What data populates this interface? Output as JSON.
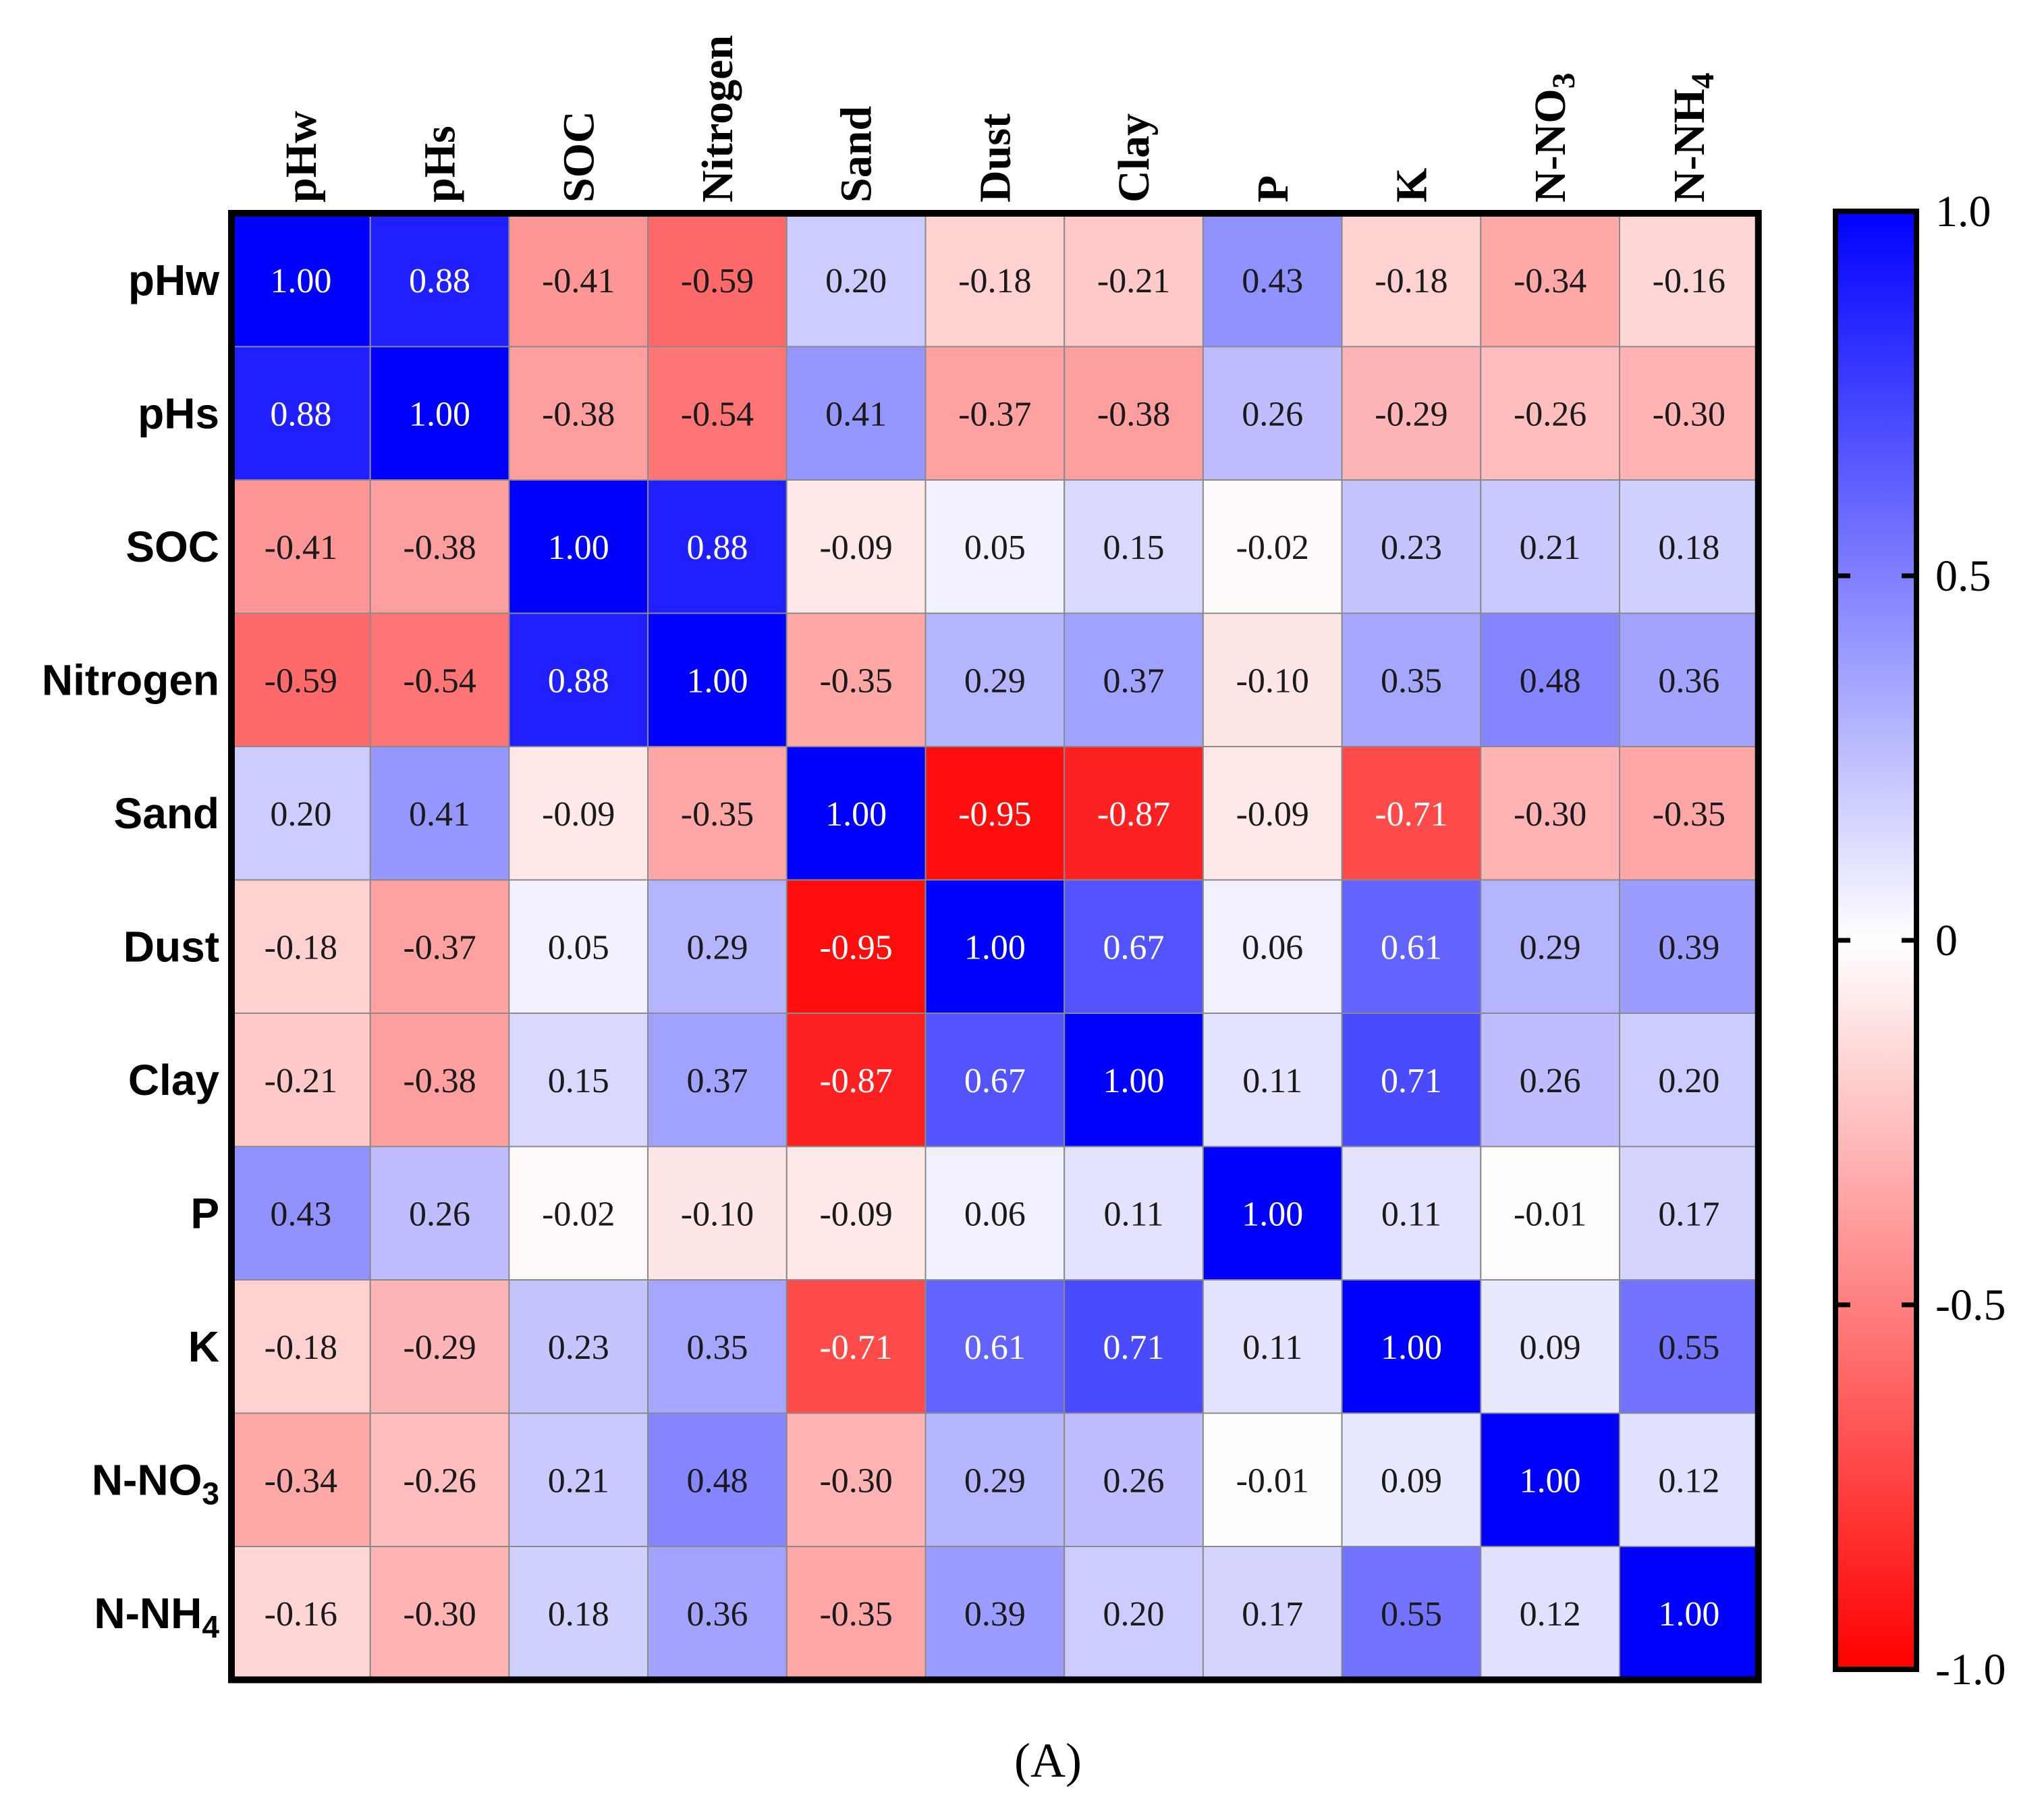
{
  "chart_data": {
    "type": "heatmap",
    "title": "",
    "panel_label": "(A)",
    "labels": [
      {
        "main": "pHw",
        "sub": ""
      },
      {
        "main": "pHs",
        "sub": ""
      },
      {
        "main": "SOC",
        "sub": ""
      },
      {
        "main": "Nitrogen",
        "sub": ""
      },
      {
        "main": "Sand",
        "sub": ""
      },
      {
        "main": "Dust",
        "sub": ""
      },
      {
        "main": "Clay",
        "sub": ""
      },
      {
        "main": "P",
        "sub": ""
      },
      {
        "main": "K",
        "sub": ""
      },
      {
        "main": "N-NO",
        "sub": "3"
      },
      {
        "main": "N-NH",
        "sub": "4"
      }
    ],
    "matrix": [
      [
        1.0,
        0.88,
        -0.41,
        -0.59,
        0.2,
        -0.18,
        -0.21,
        0.43,
        -0.18,
        -0.34,
        -0.16
      ],
      [
        0.88,
        1.0,
        -0.38,
        -0.54,
        0.41,
        -0.37,
        -0.38,
        0.26,
        -0.29,
        -0.26,
        -0.3
      ],
      [
        -0.41,
        -0.38,
        1.0,
        0.88,
        -0.09,
        0.05,
        0.15,
        -0.02,
        0.23,
        0.21,
        0.18
      ],
      [
        -0.59,
        -0.54,
        0.88,
        1.0,
        -0.35,
        0.29,
        0.37,
        -0.1,
        0.35,
        0.48,
        0.36
      ],
      [
        0.2,
        0.41,
        -0.09,
        -0.35,
        1.0,
        -0.95,
        -0.87,
        -0.09,
        -0.71,
        -0.3,
        -0.35
      ],
      [
        -0.18,
        -0.37,
        0.05,
        0.29,
        -0.95,
        1.0,
        0.67,
        0.06,
        0.61,
        0.29,
        0.39
      ],
      [
        -0.21,
        -0.38,
        0.15,
        0.37,
        -0.87,
        0.67,
        1.0,
        0.11,
        0.71,
        0.26,
        0.2
      ],
      [
        0.43,
        0.26,
        -0.02,
        -0.1,
        -0.09,
        0.06,
        0.11,
        1.0,
        0.11,
        -0.01,
        0.17
      ],
      [
        -0.18,
        -0.29,
        0.23,
        0.35,
        -0.71,
        0.61,
        0.71,
        0.11,
        1.0,
        0.09,
        0.55
      ],
      [
        -0.34,
        -0.26,
        0.21,
        0.48,
        -0.3,
        0.29,
        0.26,
        -0.01,
        0.09,
        1.0,
        0.12
      ],
      [
        -0.16,
        -0.3,
        0.18,
        0.36,
        -0.35,
        0.39,
        0.2,
        0.17,
        0.55,
        0.12,
        1.0
      ]
    ],
    "colorbar": {
      "range": [
        -1.0,
        1.0
      ],
      "ticks": [
        {
          "value": 1.0,
          "label": "1.0"
        },
        {
          "value": 0.5,
          "label": "0.5"
        },
        {
          "value": 0.0,
          "label": "0"
        },
        {
          "value": -0.5,
          "label": "-0.5"
        },
        {
          "value": -1.0,
          "label": "-1.0"
        }
      ],
      "colors": {
        "positive": "#0000ff",
        "zero": "#ffffff",
        "negative": "#ff0000"
      }
    }
  }
}
